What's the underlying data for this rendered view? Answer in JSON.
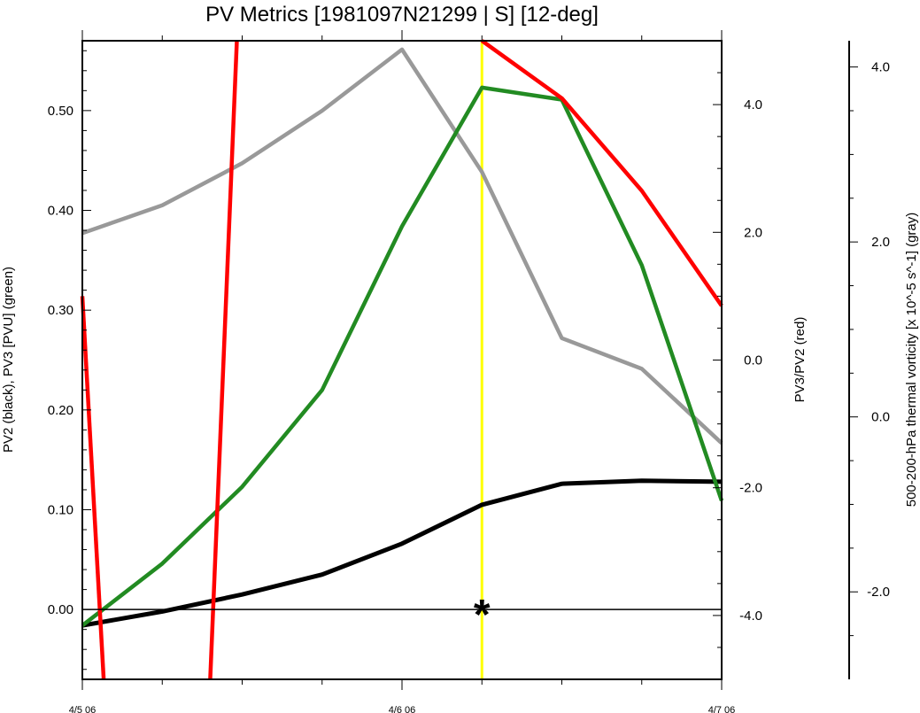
{
  "chart_data": {
    "type": "line",
    "title": "PV Metrics [1981097N21299 | S] [12-deg]",
    "x": {
      "label": "",
      "ticks": [
        "4/5 06",
        "4/6 06",
        "4/7 06"
      ],
      "range_hours": [
        0,
        48
      ],
      "tick_hours": [
        0,
        24,
        48
      ]
    },
    "y_left": {
      "label": "PV2 (black), PV3 [PVU] (green)",
      "range": [
        -0.07,
        0.57
      ],
      "ticks": [
        "0.00",
        "0.10",
        "0.20",
        "0.30",
        "0.40",
        "0.50"
      ],
      "tick_values": [
        0.0,
        0.1,
        0.2,
        0.3,
        0.4,
        0.5
      ]
    },
    "y_right_red": {
      "label": "PV3/PV2 (red)",
      "range": [
        -5.0,
        5.0
      ],
      "ticks": [
        "4.0",
        "2.0",
        "0.0",
        "-2.0",
        "-4.0"
      ],
      "tick_values": [
        4.0,
        2.0,
        0.0,
        -2.0,
        -4.0
      ]
    },
    "y_right_gray": {
      "label": "500-200-hPa thermal vorticity [x 10^-5 s^-1] (gray)",
      "range": [
        -3.0,
        4.3
      ],
      "ticks": [
        "4.0",
        "2.0",
        "0.0",
        "-2.0"
      ],
      "tick_values": [
        4.0,
        2.0,
        0.0,
        -2.0
      ]
    },
    "series": [
      {
        "axis": "left",
        "color": "#000000",
        "points": [
          [
            0,
            -0.016
          ],
          [
            6,
            -0.002
          ],
          [
            12,
            0.015
          ],
          [
            18,
            0.035
          ],
          [
            24,
            0.066
          ],
          [
            30,
            0.105
          ],
          [
            36,
            0.126
          ],
          [
            42,
            0.129
          ],
          [
            48,
            0.128
          ]
        ]
      },
      {
        "axis": "left",
        "color": "#228b22",
        "points": [
          [
            0,
            -0.016
          ],
          [
            6,
            0.046
          ],
          [
            12,
            0.123
          ],
          [
            18,
            0.22
          ],
          [
            24,
            0.384
          ],
          [
            30,
            0.523
          ],
          [
            36,
            0.511
          ],
          [
            42,
            0.345
          ],
          [
            48,
            0.109
          ]
        ]
      },
      {
        "axis": "right_red",
        "color": "#ff0000",
        "segments": [
          [
            [
              0,
              1.0
            ],
            [
              1.6,
              -5.0
            ]
          ],
          [
            [
              9.6,
              -5.0
            ],
            [
              11.6,
              5.0
            ]
          ],
          [
            [
              30,
              5.0
            ],
            [
              36,
              4.1
            ],
            [
              42,
              2.65
            ],
            [
              48,
              0.85
            ]
          ]
        ]
      },
      {
        "axis": "right_gray",
        "color": "#999999",
        "points": [
          [
            0,
            2.1
          ],
          [
            6,
            2.42
          ],
          [
            12,
            2.9
          ],
          [
            18,
            3.5
          ],
          [
            24,
            4.2
          ],
          [
            30,
            2.8
          ],
          [
            36,
            0.9
          ],
          [
            42,
            0.55
          ],
          [
            48,
            -0.3
          ]
        ]
      }
    ],
    "marker": {
      "hour": 30,
      "symbol": "*",
      "color": "#ffff00"
    },
    "zero_line": true,
    "grid": false
  }
}
